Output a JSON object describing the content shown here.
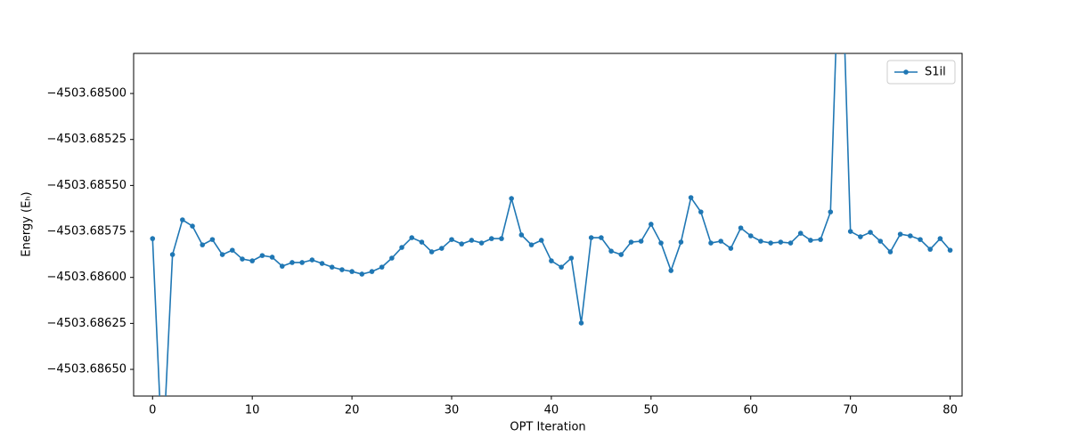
{
  "chart_data": {
    "type": "line",
    "xlabel": "OPT Iteration",
    "ylabel": "Energy (Eₕ)",
    "x": [
      0,
      1,
      2,
      3,
      4,
      5,
      6,
      7,
      8,
      9,
      10,
      11,
      12,
      13,
      14,
      15,
      16,
      17,
      18,
      19,
      20,
      21,
      22,
      23,
      24,
      25,
      26,
      27,
      28,
      29,
      30,
      31,
      32,
      33,
      34,
      35,
      36,
      37,
      38,
      39,
      40,
      41,
      42,
      43,
      44,
      45,
      46,
      47,
      48,
      49,
      50,
      51,
      52,
      53,
      54,
      55,
      56,
      57,
      58,
      59,
      60,
      61,
      62,
      63,
      64,
      65,
      66,
      67,
      68,
      69,
      70,
      71,
      72,
      73,
      74,
      75,
      76,
      77,
      78,
      79,
      80
    ],
    "series": [
      {
        "name": "S1il",
        "color": "#1f77b4",
        "values": [
          -4503.685789,
          -4503.687,
          -4503.685876,
          -4503.685687,
          -4503.685721,
          -4503.685823,
          -4503.685794,
          -4503.685876,
          -4503.685852,
          -4503.6859,
          -4503.68591,
          -4503.685881,
          -4503.68589,
          -4503.685939,
          -4503.685919,
          -4503.685919,
          -4503.685905,
          -4503.685924,
          -4503.685944,
          -4503.685958,
          -4503.685968,
          -4503.685982,
          -4503.685968,
          -4503.685944,
          -4503.685895,
          -4503.685837,
          -4503.685784,
          -4503.685808,
          -4503.685861,
          -4503.685842,
          -4503.685794,
          -4503.685818,
          -4503.685798,
          -4503.685813,
          -4503.685789,
          -4503.685789,
          -4503.685571,
          -4503.685769,
          -4503.685823,
          -4503.685798,
          -4503.68591,
          -4503.685944,
          -4503.685895,
          -4503.686248,
          -4503.685784,
          -4503.685784,
          -4503.685857,
          -4503.685876,
          -4503.685808,
          -4503.685803,
          -4503.685711,
          -4503.685813,
          -4503.685963,
          -4503.685808,
          -4503.685566,
          -4503.685644,
          -4503.685813,
          -4503.685803,
          -4503.685842,
          -4503.685731,
          -4503.685774,
          -4503.685803,
          -4503.685813,
          -4503.685808,
          -4503.685813,
          -4503.68576,
          -4503.685798,
          -4503.685794,
          -4503.685644,
          -4503.684,
          -4503.68575,
          -4503.685779,
          -4503.685755,
          -4503.685803,
          -4503.685861,
          -4503.685765,
          -4503.685774,
          -4503.685794,
          -4503.685847,
          -4503.685789,
          -4503.685852
        ]
      }
    ],
    "xlim": [
      -1.9,
      81.2
    ],
    "ylim": [
      -4503.686645,
      -4503.684782
    ],
    "xticks": [
      0,
      10,
      20,
      30,
      40,
      50,
      60,
      70,
      80
    ],
    "yticks": [
      {
        "value": -4503.6865,
        "label": "−4503.68650"
      },
      {
        "value": -4503.68625,
        "label": "−4503.68625"
      },
      {
        "value": -4503.686,
        "label": "−4503.68600"
      },
      {
        "value": -4503.68575,
        "label": "−4503.68575"
      },
      {
        "value": -4503.6855,
        "label": "−4503.68550"
      },
      {
        "value": -4503.68525,
        "label": "−4503.68525"
      },
      {
        "value": -4503.685,
        "label": "−4503.68500"
      }
    ],
    "legend": "upper right",
    "grid": false
  }
}
